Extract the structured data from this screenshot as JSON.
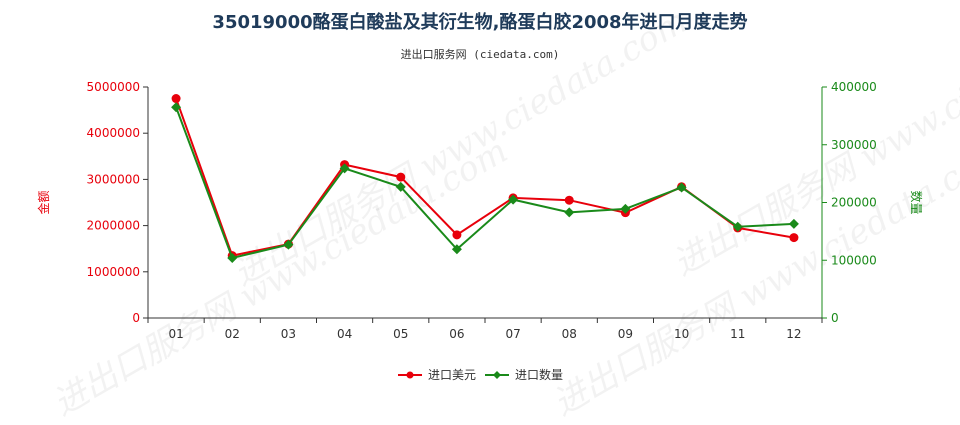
{
  "title": "35019000酪蛋白酸盐及其衍生物,酪蛋白胶2008年进口月度走势",
  "subtitle": "进出口服务网 (ciedata.com)",
  "watermark": "进出口服务网 www.ciedata.com",
  "chart_data": {
    "type": "line",
    "title": "35019000酪蛋白酸盐及其衍生物,酪蛋白胶2008年进口月度走势",
    "categories": [
      "01",
      "02",
      "03",
      "04",
      "05",
      "06",
      "07",
      "08",
      "09",
      "10",
      "11",
      "12"
    ],
    "y_left": {
      "label": "金额",
      "lim": [
        0,
        5000000
      ],
      "ticks": [
        "0",
        "1000000",
        "2000000",
        "3000000",
        "4000000",
        "5000000"
      ],
      "color": "#e8000b"
    },
    "y_right": {
      "label": "数量",
      "lim": [
        0,
        400000
      ],
      "ticks": [
        "0",
        "100000",
        "200000",
        "300000",
        "400000"
      ],
      "color": "#1a8a1a"
    },
    "series": [
      {
        "name": "进口美元",
        "axis": "left",
        "color": "#e8000b",
        "marker": "circle",
        "values": [
          4750000,
          1350000,
          1600000,
          3320000,
          3050000,
          1800000,
          2600000,
          2550000,
          2280000,
          2840000,
          1950000,
          1740000
        ]
      },
      {
        "name": "进口数量",
        "axis": "right",
        "color": "#1a8a1a",
        "marker": "diamond",
        "values": [
          365000,
          104000,
          127000,
          259000,
          227000,
          119000,
          205000,
          183000,
          189000,
          226000,
          158000,
          163000
        ]
      }
    ],
    "legend_position": "bottom-center",
    "grid": false
  }
}
